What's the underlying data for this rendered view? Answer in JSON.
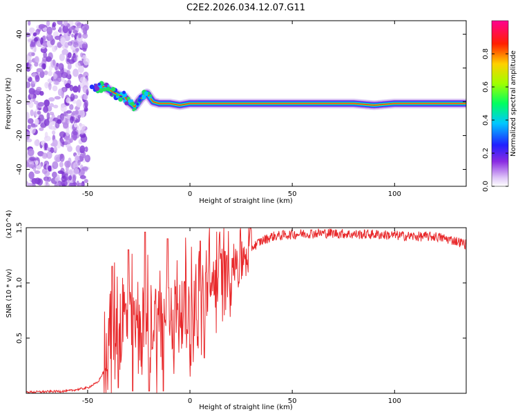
{
  "title": "C2E2.2026.034.12.07.G11",
  "chart_data": [
    {
      "type": "heatmap",
      "xlabel": "Height of straight line (km)",
      "ylabel": "Frequency (Hz)",
      "xlim": [
        -80,
        135
      ],
      "ylim": [
        -50,
        48
      ],
      "x_ticks": [
        -50,
        0,
        50,
        100
      ],
      "y_ticks": [
        -40,
        -20,
        0,
        20,
        40
      ],
      "colorbar": {
        "label": "Normalized spectral amplitude",
        "range": [
          0.0,
          1.0
        ],
        "ticks": [
          0.0,
          0.2,
          0.4,
          0.6,
          0.8
        ],
        "tick_labels": [
          "0.0",
          "0.2",
          "0.4",
          "0.6",
          "0.8"
        ],
        "colormap": "rainbow (white-violet-blue-cyan-green-yellow-red-magenta)"
      },
      "ridge": {
        "description": "dominant frequency track",
        "x": [
          -45,
          -42,
          -38,
          -35,
          -32,
          -30,
          -27,
          -24,
          -21,
          -18,
          -15,
          -10,
          -5,
          0,
          5,
          10,
          20,
          30,
          40,
          60,
          80,
          90,
          100,
          120,
          135
        ],
        "y": [
          8,
          9,
          6,
          4,
          3,
          0,
          -3,
          2,
          5,
          0,
          -1,
          -1,
          -2,
          -1,
          -1,
          -1,
          -1,
          -1,
          -1,
          -1,
          -1,
          -2,
          -1,
          -1,
          -1
        ]
      },
      "noise_region_x": [
        -80,
        -50
      ]
    },
    {
      "type": "line",
      "xlabel": "Height of straight line (km)",
      "ylabel": "SNR (10 * v/v)",
      "multiplier": "(x10^4)",
      "xlim": [
        -80,
        135
      ],
      "ylim": [
        0,
        1.5
      ],
      "x_ticks": [
        -50,
        0,
        50,
        100
      ],
      "y_ticks": [
        0.5,
        1.0,
        1.5
      ],
      "y_tick_labels": [
        "0.5",
        "1.0",
        "1.5"
      ],
      "line_color": "#e8282a",
      "series_envelope": {
        "x": [
          -80,
          -60,
          -50,
          -45,
          -42,
          -40,
          -38,
          -35,
          -30,
          -25,
          -20,
          -15,
          -10,
          -5,
          0,
          5,
          10,
          15,
          20,
          25,
          30,
          35,
          40,
          50,
          60,
          70,
          80,
          90,
          100,
          110,
          120,
          130,
          135
        ],
        "y": [
          0.01,
          0.02,
          0.05,
          0.1,
          0.2,
          0.5,
          0.65,
          0.6,
          0.7,
          0.6,
          0.65,
          0.7,
          0.7,
          0.75,
          0.75,
          0.8,
          0.95,
          1.1,
          1.15,
          1.25,
          1.32,
          1.38,
          1.42,
          1.44,
          1.45,
          1.45,
          1.44,
          1.44,
          1.43,
          1.42,
          1.42,
          1.38,
          1.35
        ]
      },
      "peaks": [
        {
          "x": -38,
          "y": 1.15
        },
        {
          "x": -30,
          "y": 1.3
        },
        {
          "x": -22,
          "y": 1.46
        },
        {
          "x": -11,
          "y": 1.4
        },
        {
          "x": 5,
          "y": 1.38
        },
        {
          "x": 18,
          "y": 1.25
        }
      ],
      "dips": [
        {
          "x": -35,
          "y": 0.05
        },
        {
          "x": -28,
          "y": 0.02
        },
        {
          "x": -20,
          "y": 0.02
        },
        {
          "x": -13,
          "y": 0.02
        },
        {
          "x": 7,
          "y": 0.32
        }
      ]
    }
  ]
}
